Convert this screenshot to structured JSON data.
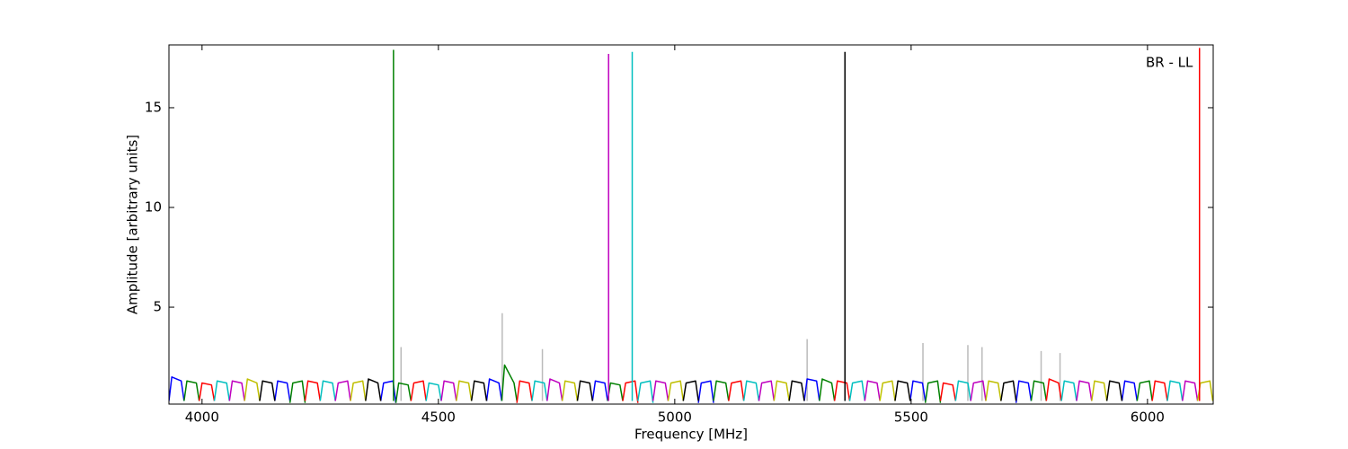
{
  "chart_data": {
    "type": "line",
    "xlabel": "Frequency [MHz]",
    "ylabel": "Amplitude [arbitrary units]",
    "annotation": "BR - LL",
    "xlim": [
      3930,
      6139
    ],
    "ylim": [
      0.14,
      18.15
    ],
    "xticks": [
      4000,
      4500,
      5000,
      5500,
      6000
    ],
    "yticks": [
      5,
      10,
      15
    ],
    "grid": false,
    "series": [
      {
        "color": "#bbbbbb",
        "x": [
          4421,
          4421,
          null,
          4635,
          4635,
          null,
          4720,
          4720,
          null,
          5280,
          5280,
          null,
          5525,
          5525,
          null,
          5620,
          5620,
          null,
          5650,
          5650,
          null,
          5775,
          5775,
          null,
          5815,
          5815
        ],
        "values": [
          0.3,
          3.0,
          null,
          0.3,
          4.7,
          null,
          0.3,
          2.9,
          null,
          0.3,
          3.4,
          null,
          0.3,
          3.2,
          null,
          0.3,
          3.1,
          null,
          0.3,
          3.0,
          null,
          0.3,
          2.8,
          null,
          0.3,
          2.7
        ]
      },
      {
        "color": "#0000ff",
        "x": [
          3930,
          3936,
          3956,
          3962,
          null,
          4154,
          4160,
          4180,
          4186,
          null,
          4378,
          4384,
          4404,
          4410,
          null,
          4602,
          4608,
          4628,
          4634,
          null,
          4826,
          4832,
          4852,
          4858,
          null,
          5050,
          5056,
          5076,
          5082,
          null,
          5274,
          5280,
          5300,
          5306,
          null,
          5498,
          5504,
          5524,
          5530,
          null,
          5722,
          5728,
          5748,
          5754,
          null,
          5946,
          5952,
          5972,
          5978
        ],
        "values": [
          0.3,
          1.5,
          1.3,
          0.3,
          null,
          0.3,
          1.3,
          1.2,
          0.3,
          null,
          0.3,
          1.2,
          1.3,
          0.2,
          null,
          0.3,
          1.4,
          1.2,
          0.3,
          null,
          0.3,
          1.3,
          1.2,
          0.3,
          null,
          0.2,
          1.2,
          1.3,
          0.2,
          null,
          0.3,
          1.4,
          1.3,
          0.3,
          null,
          0.3,
          1.3,
          1.2,
          0.3,
          null,
          0.2,
          1.3,
          1.2,
          0.3,
          null,
          0.3,
          1.3,
          1.2,
          0.3
        ]
      },
      {
        "color": "#008000",
        "x": [
          3962,
          3968,
          3988,
          3994,
          null,
          4186,
          4192,
          4212,
          4218,
          null,
          4410,
          4416,
          4436,
          4442,
          null,
          4634,
          4640,
          4660,
          4666,
          null,
          4858,
          4864,
          4884,
          4890,
          null,
          5082,
          5088,
          5108,
          5114,
          null,
          5306,
          5312,
          5332,
          5338,
          null,
          5530,
          5536,
          5556,
          5562,
          null,
          5754,
          5760,
          5780,
          5786,
          null,
          5978,
          5984,
          6004,
          6010
        ],
        "values": [
          0.3,
          1.3,
          1.2,
          0.3,
          null,
          0.2,
          1.2,
          1.3,
          0.2,
          null,
          0.2,
          1.2,
          1.1,
          0.3,
          null,
          0.3,
          2.1,
          1.2,
          0.3,
          null,
          0.3,
          1.2,
          1.1,
          0.3,
          null,
          0.3,
          1.3,
          1.2,
          0.3,
          null,
          0.3,
          1.4,
          1.2,
          0.3,
          null,
          0.2,
          1.2,
          1.3,
          0.2,
          null,
          0.3,
          1.3,
          1.2,
          0.3,
          null,
          0.3,
          1.2,
          1.3,
          0.3
        ]
      },
      {
        "color": "#ff0000",
        "x": [
          3994,
          4000,
          4020,
          4026,
          null,
          4218,
          4224,
          4244,
          4250,
          null,
          4442,
          4448,
          4468,
          4474,
          null,
          4666,
          4672,
          4692,
          4698,
          null,
          4890,
          4896,
          4916,
          4922,
          null,
          5114,
          5120,
          5140,
          5146,
          null,
          5338,
          5344,
          5364,
          5370,
          null,
          5562,
          5568,
          5588,
          5594,
          null,
          5786,
          5792,
          5812,
          5818,
          null,
          6010,
          6016,
          6036,
          6042
        ],
        "values": [
          0.3,
          1.2,
          1.1,
          0.3,
          null,
          0.3,
          1.3,
          1.2,
          0.3,
          null,
          0.3,
          1.2,
          1.3,
          0.3,
          null,
          0.2,
          1.3,
          1.2,
          0.3,
          null,
          0.3,
          1.2,
          1.3,
          0.2,
          null,
          0.3,
          1.2,
          1.3,
          0.3,
          null,
          0.3,
          1.3,
          1.2,
          0.3,
          null,
          0.3,
          1.2,
          1.1,
          0.3,
          null,
          0.3,
          1.4,
          1.2,
          0.3,
          null,
          0.3,
          1.3,
          1.2,
          0.3
        ]
      },
      {
        "color": "#00bfbf",
        "x": [
          4026,
          4032,
          4052,
          4058,
          null,
          4250,
          4256,
          4276,
          4282,
          null,
          4474,
          4480,
          4500,
          4506,
          null,
          4698,
          4704,
          4724,
          4730,
          null,
          4922,
          4928,
          4948,
          4954,
          null,
          5146,
          5152,
          5172,
          5178,
          null,
          5370,
          5376,
          5396,
          5402,
          null,
          5594,
          5600,
          5620,
          5626,
          null,
          5818,
          5824,
          5844,
          5850,
          null,
          6042,
          6048,
          6068,
          6074
        ],
        "values": [
          0.3,
          1.3,
          1.2,
          0.3,
          null,
          0.3,
          1.3,
          1.2,
          0.3,
          null,
          0.3,
          1.2,
          1.1,
          0.3,
          null,
          0.3,
          1.3,
          1.2,
          0.3,
          null,
          0.3,
          1.2,
          1.3,
          0.2,
          null,
          0.3,
          1.3,
          1.2,
          0.3,
          null,
          0.3,
          1.2,
          1.3,
          0.3,
          null,
          0.3,
          1.3,
          1.2,
          0.3,
          null,
          0.3,
          1.3,
          1.2,
          0.3,
          null,
          0.3,
          1.3,
          1.2,
          0.3
        ]
      },
      {
        "color": "#bf00bf",
        "x": [
          4058,
          4064,
          4084,
          4090,
          null,
          4282,
          4288,
          4308,
          4314,
          null,
          4506,
          4512,
          4532,
          4538,
          null,
          4730,
          4736,
          4756,
          4762,
          null,
          4954,
          4960,
          4980,
          4986,
          null,
          5178,
          5184,
          5204,
          5210,
          null,
          5402,
          5408,
          5428,
          5434,
          null,
          5626,
          5632,
          5652,
          5658,
          null,
          5850,
          5856,
          5876,
          5882,
          null,
          6074,
          6080,
          6100,
          6106
        ],
        "values": [
          0.3,
          1.3,
          1.2,
          0.3,
          null,
          0.3,
          1.2,
          1.3,
          0.3,
          null,
          0.3,
          1.3,
          1.2,
          0.3,
          null,
          0.3,
          1.4,
          1.2,
          0.3,
          null,
          0.3,
          1.3,
          1.2,
          0.3,
          null,
          0.3,
          1.2,
          1.3,
          0.3,
          null,
          0.3,
          1.3,
          1.2,
          0.3,
          null,
          0.3,
          1.2,
          1.3,
          0.3,
          null,
          0.3,
          1.3,
          1.2,
          0.3,
          null,
          0.3,
          1.3,
          1.2,
          0.3
        ]
      },
      {
        "color": "#bfbf00",
        "x": [
          4090,
          4096,
          4116,
          4122,
          null,
          4314,
          4320,
          4340,
          4346,
          null,
          4538,
          4544,
          4564,
          4570,
          null,
          4762,
          4768,
          4788,
          4794,
          null,
          4986,
          4992,
          5012,
          5018,
          null,
          5210,
          5216,
          5236,
          5242,
          null,
          5434,
          5440,
          5460,
          5466,
          null,
          5658,
          5664,
          5684,
          5690,
          null,
          5882,
          5888,
          5908,
          5914,
          null,
          6106,
          6112,
          6132,
          6138
        ],
        "values": [
          0.3,
          1.4,
          1.2,
          0.3,
          null,
          0.3,
          1.2,
          1.3,
          0.3,
          null,
          0.3,
          1.3,
          1.2,
          0.3,
          null,
          0.3,
          1.3,
          1.2,
          0.3,
          null,
          0.3,
          1.2,
          1.3,
          0.3,
          null,
          0.3,
          1.3,
          1.2,
          0.3,
          null,
          0.3,
          1.2,
          1.3,
          0.3,
          null,
          0.3,
          1.3,
          1.2,
          0.3,
          null,
          0.3,
          1.3,
          1.2,
          0.3,
          null,
          0.3,
          1.2,
          1.3,
          0.3
        ]
      },
      {
        "color": "#000000",
        "x": [
          4122,
          4128,
          4148,
          4154,
          null,
          4346,
          4352,
          4372,
          4378,
          null,
          4570,
          4576,
          4596,
          4602,
          null,
          4794,
          4800,
          4820,
          4826,
          null,
          5018,
          5024,
          5044,
          5050,
          null,
          5242,
          5248,
          5268,
          5274,
          null,
          5466,
          5472,
          5492,
          5498,
          null,
          5690,
          5696,
          5716,
          5722,
          null,
          5914,
          5920,
          5940,
          5946
        ],
        "values": [
          0.3,
          1.3,
          1.2,
          0.3,
          null,
          0.3,
          1.4,
          1.2,
          0.3,
          null,
          0.3,
          1.3,
          1.2,
          0.3,
          null,
          0.3,
          1.3,
          1.2,
          0.3,
          null,
          0.3,
          1.2,
          1.3,
          0.3,
          null,
          0.3,
          1.3,
          1.2,
          0.3,
          null,
          0.3,
          1.3,
          1.2,
          0.3,
          null,
          0.3,
          1.2,
          1.3,
          0.3,
          null,
          0.3,
          1.3,
          1.2,
          0.3
        ]
      },
      {
        "color": "#008000",
        "x": [
          4405,
          4405
        ],
        "values": [
          0.3,
          17.9
        ]
      },
      {
        "color": "#bf00bf",
        "x": [
          4860,
          4860
        ],
        "values": [
          0.3,
          17.7
        ]
      },
      {
        "color": "#00bfbf",
        "x": [
          4910,
          4910
        ],
        "values": [
          0.3,
          17.8
        ]
      },
      {
        "color": "#000000",
        "x": [
          5360,
          5360
        ],
        "values": [
          0.3,
          17.8
        ]
      },
      {
        "color": "#ff0000",
        "x": [
          6110,
          6110
        ],
        "values": [
          0.3,
          18.0
        ]
      }
    ]
  }
}
